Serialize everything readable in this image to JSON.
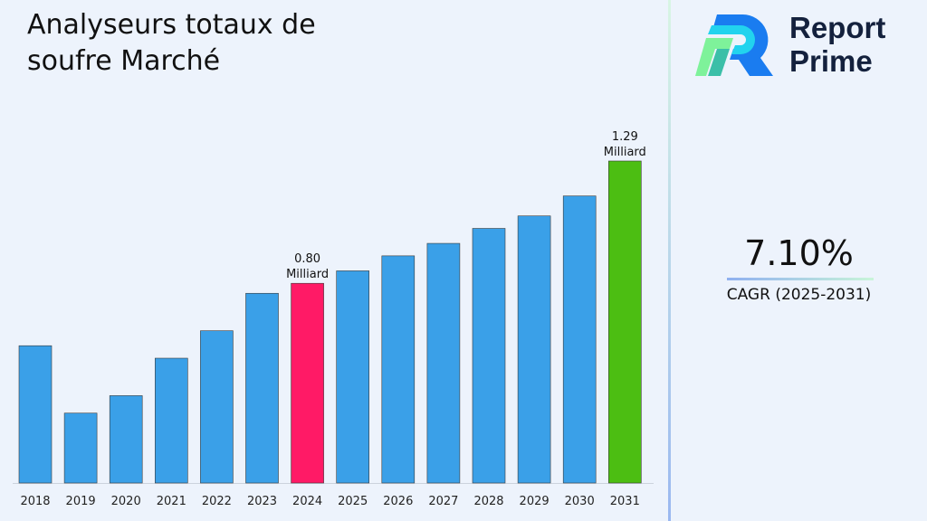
{
  "title": "Analyseurs totaux de soufre Marché",
  "logo": {
    "line1": "Report",
    "line2": "Prime"
  },
  "cagr": {
    "value": "7.10%",
    "label": "CAGR (2025-2031)"
  },
  "colors": {
    "default_bar": "#3aa0e8",
    "highlight_2024": "#ff1a66",
    "highlight_2031": "#4cbe12",
    "background": "#edf3fc"
  },
  "chart_data": {
    "type": "bar",
    "categories": [
      "2018",
      "2019",
      "2020",
      "2021",
      "2022",
      "2023",
      "2024",
      "2025",
      "2026",
      "2027",
      "2028",
      "2029",
      "2030",
      "2031"
    ],
    "values": [
      0.55,
      0.28,
      0.35,
      0.5,
      0.61,
      0.76,
      0.8,
      0.85,
      0.91,
      0.96,
      1.02,
      1.07,
      1.15,
      1.29
    ],
    "unit": "Milliard",
    "data_labels": [
      {
        "category": "2024",
        "value": "0.80",
        "unit": "Milliard"
      },
      {
        "category": "2031",
        "value": "1.29",
        "unit": "Milliard"
      }
    ],
    "ylim": [
      0,
      1.29
    ],
    "grid": false,
    "title": "Analyseurs totaux de soufre Marché"
  }
}
